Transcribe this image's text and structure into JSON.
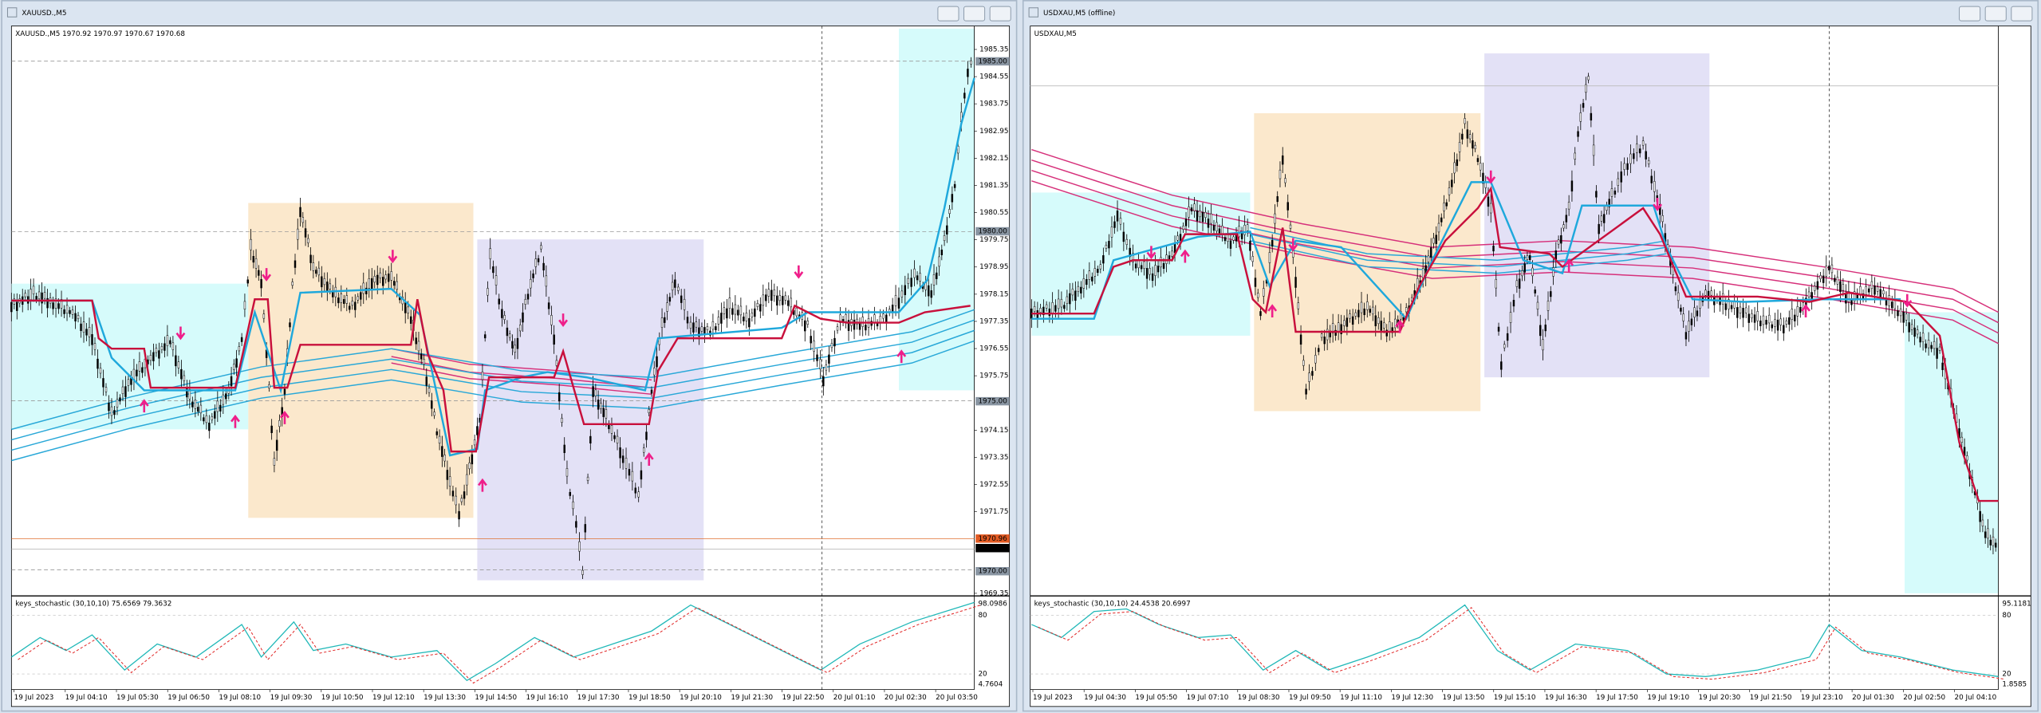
{
  "windows": [
    {
      "title": "XAUUSD.,M5",
      "legend": "XAUUSD.,M5  1970.92 1970.97 1970.67 1970.68",
      "price_labels": [
        "1985.35",
        "1984.55",
        "1983.75",
        "1982.95",
        "1982.15",
        "1981.35",
        "1980.55",
        "1979.75",
        "1978.95",
        "1978.15",
        "1977.35",
        "1976.55",
        "1975.75",
        "1974.15",
        "1973.35",
        "1972.55",
        "1971.75",
        "1969.35"
      ],
      "price_tags": [
        "1985.00",
        "1980.00",
        "1975.00",
        "1970.96",
        "1970.68",
        "1970.00"
      ],
      "indicator": {
        "label": "keys_stochastic (30,10,10) 75.6569 79.3632",
        "scale": [
          "98.0986",
          "80",
          "20",
          "4.7604"
        ]
      },
      "time_labels": [
        "19 Jul 2023",
        "19 Jul 04:10",
        "19 Jul 05:30",
        "19 Jul 06:50",
        "19 Jul 08:10",
        "19 Jul 09:30",
        "19 Jul 10:50",
        "19 Jul 12:10",
        "19 Jul 13:30",
        "19 Jul 14:50",
        "19 Jul 16:10",
        "19 Jul 17:30",
        "19 Jul 18:50",
        "19 Jul 20:10",
        "19 Jul 21:30",
        "19 Jul 22:50",
        "20 Jul 01:10",
        "20 Jul 02:30",
        "20 Jul 03:50"
      ]
    },
    {
      "title": "USDXAU,M5 (offline)",
      "legend": "USDXAU,M5",
      "indicator": {
        "label": "keys_stochastic (30,10,10) 24.4538 20.6997",
        "scale": [
          "95.1181",
          "80",
          "20",
          "1.8585"
        ]
      },
      "time_labels": [
        "19 Jul 2023",
        "19 Jul 04:30",
        "19 Jul 05:50",
        "19 Jul 07:10",
        "19 Jul 08:30",
        "19 Jul 09:50",
        "19 Jul 11:10",
        "19 Jul 12:30",
        "19 Jul 13:50",
        "19 Jul 15:10",
        "19 Jul 16:30",
        "19 Jul 17:50",
        "19 Jul 19:10",
        "19 Jul 20:30",
        "19 Jul 21:50",
        "19 Jul 23:10",
        "20 Jul 01:30",
        "20 Jul 02:50",
        "20 Jul 04:10"
      ]
    }
  ]
}
